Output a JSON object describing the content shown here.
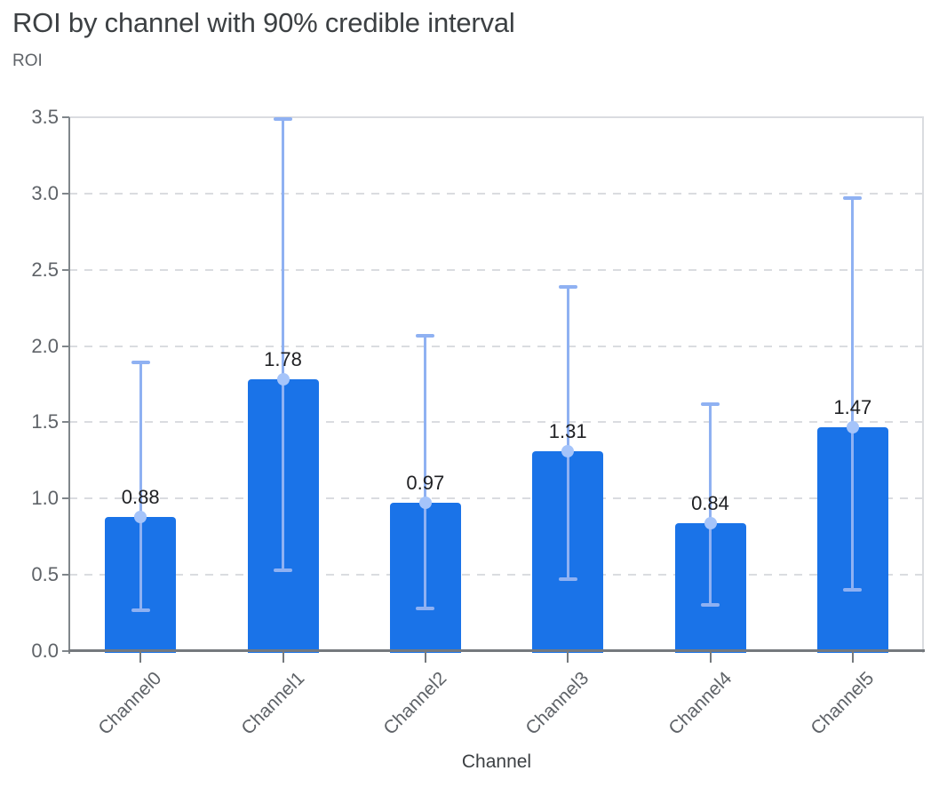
{
  "page": {
    "title": "ROI by channel with 90% credible interval"
  },
  "chart_data": {
    "type": "bar",
    "title": "ROI by channel with 90% credible interval",
    "ylabel": "ROI",
    "xlabel": "Channel",
    "categories": [
      "Channel0",
      "Channel1",
      "Channel2",
      "Channel3",
      "Channel4",
      "Channel5"
    ],
    "series": [
      {
        "name": "ROI",
        "values": [
          0.88,
          1.78,
          0.97,
          1.31,
          0.84,
          1.47
        ],
        "data_labels": [
          "0.88",
          "1.78",
          "0.97",
          "1.31",
          "0.84",
          "1.47"
        ],
        "error_bars": {
          "type": "90% credible interval",
          "lower": [
            0.27,
            0.53,
            0.28,
            0.47,
            0.3,
            0.4
          ],
          "upper": [
            1.89,
            3.49,
            2.07,
            2.39,
            1.62,
            2.97
          ]
        }
      }
    ],
    "ylim": [
      0,
      3.5
    ],
    "yticks": [
      "0.0",
      "0.5",
      "1.0",
      "1.5",
      "2.0",
      "2.5",
      "3.0",
      "3.5"
    ],
    "grid": "horizontal-dashed",
    "legend": "none",
    "colors": {
      "bar": "#1a73e8",
      "error_bar": "#8fb1f2",
      "error_dot": "#a5c4fa",
      "gridline": "#dadce0",
      "axis_line": "#75797d",
      "y_axis_line": "#80868b",
      "tick_label": "#5f6368",
      "value_label": "#202124",
      "title": "#3c4043",
      "axis_title": "#3c4043"
    }
  }
}
